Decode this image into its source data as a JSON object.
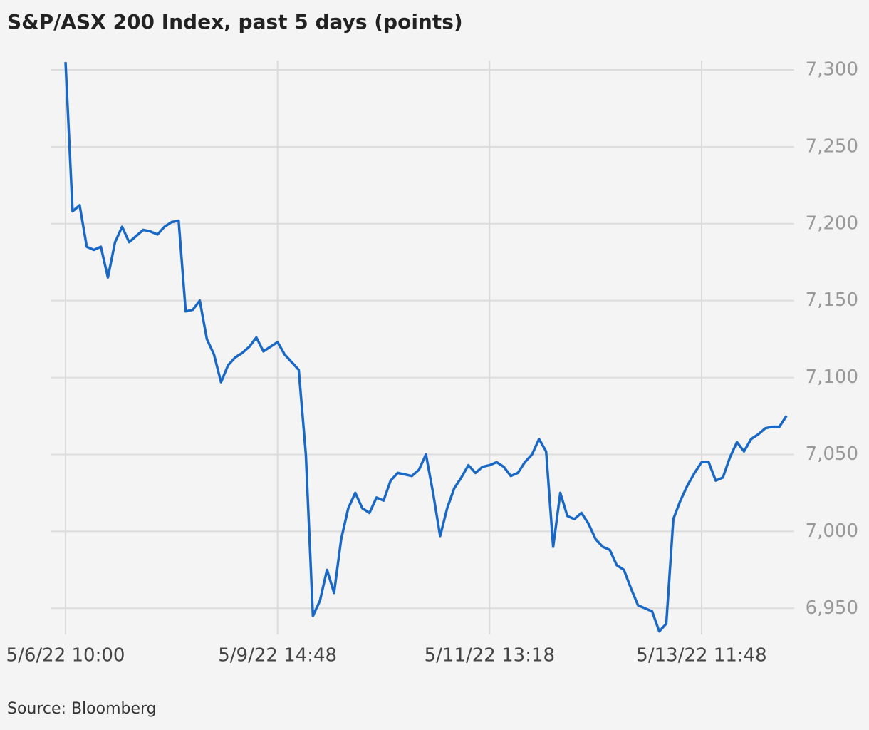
{
  "chart_data": {
    "type": "line",
    "title": "S&P/ASX 200 Index, past 5 days (points)",
    "source": "Source: Bloomberg",
    "categories": [
      "5/6/22 10:00",
      null,
      null,
      null,
      null,
      null,
      null,
      null,
      null,
      null,
      null,
      null,
      null,
      null,
      null,
      null,
      null,
      null,
      null,
      null,
      null,
      null,
      null,
      null,
      null,
      null,
      null,
      null,
      null,
      null,
      "5/9/22 14:48",
      null,
      null,
      null,
      null,
      null,
      null,
      null,
      null,
      null,
      null,
      null,
      null,
      null,
      null,
      null,
      null,
      null,
      null,
      null,
      null,
      null,
      null,
      null,
      null,
      null,
      null,
      null,
      null,
      null,
      "5/11/22 13:18",
      null,
      null,
      null,
      null,
      null,
      null,
      null,
      null,
      null,
      null,
      null,
      null,
      null,
      null,
      null,
      null,
      null,
      null,
      null,
      null,
      null,
      null,
      null,
      null,
      null,
      null,
      null,
      null,
      null,
      "5/13/22 11:48",
      null,
      null,
      null,
      null,
      null,
      null,
      null,
      null,
      null,
      null,
      null,
      null
    ],
    "series": [
      {
        "name": "S&P/ASX 200",
        "color": "#1a68c6",
        "values": [
          7305,
          7208,
          7212,
          7185,
          7183,
          7185,
          7165,
          7188,
          7198,
          7188,
          7192,
          7196,
          7195,
          7193,
          7198,
          7201,
          7202,
          7143,
          7144,
          7150,
          7125,
          7115,
          7097,
          7108,
          7113,
          7116,
          7120,
          7126,
          7117,
          7120,
          7123,
          7115,
          7110,
          7105,
          7050,
          6945,
          6955,
          6975,
          6960,
          6995,
          7015,
          7025,
          7015,
          7012,
          7022,
          7020,
          7033,
          7038,
          7037,
          7036,
          7040,
          7050,
          7025,
          6997,
          7015,
          7028,
          7035,
          7043,
          7038,
          7042,
          7043,
          7045,
          7042,
          7036,
          7038,
          7045,
          7050,
          7060,
          7052,
          6990,
          7025,
          7010,
          7008,
          7012,
          7005,
          6995,
          6990,
          6988,
          6978,
          6975,
          6963,
          6952,
          6950,
          6948,
          6935,
          6940,
          7008,
          7020,
          7030,
          7038,
          7045,
          7045,
          7033,
          7035,
          7048,
          7058,
          7052,
          7060,
          7063,
          7067,
          7068,
          7068,
          7075
        ]
      }
    ],
    "ylim": [
      6933,
      7306
    ],
    "yticks": [
      {
        "value": 6950,
        "label": "6,950"
      },
      {
        "value": 7000,
        "label": "7,000"
      },
      {
        "value": 7050,
        "label": "7,050"
      },
      {
        "value": 7100,
        "label": "7,100"
      },
      {
        "value": 7150,
        "label": "7,150"
      },
      {
        "value": 7200,
        "label": "7,200"
      },
      {
        "value": 7250,
        "label": "7,250"
      },
      {
        "value": 7300,
        "label": "7,300"
      }
    ],
    "grid": true
  }
}
